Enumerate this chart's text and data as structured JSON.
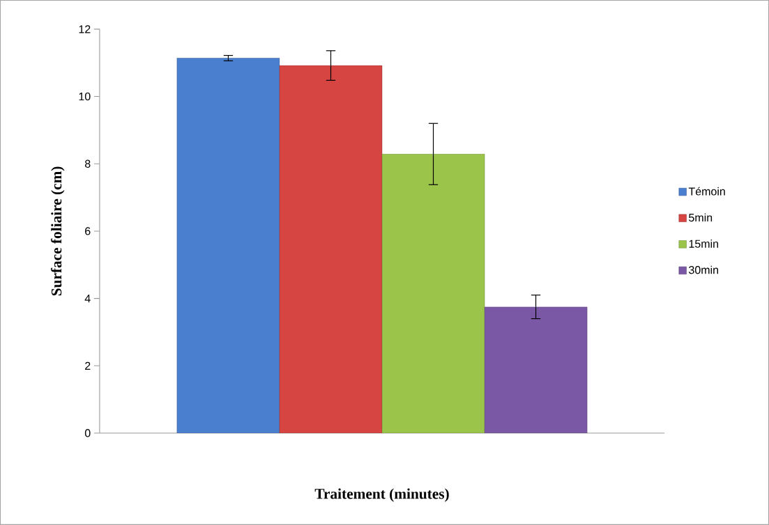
{
  "chart_data": {
    "type": "bar",
    "xlabel": "Traitement (minutes)",
    "ylabel": "Surface foliaire (cm)",
    "categories": [
      null
    ],
    "series": [
      {
        "name": "Témoin",
        "color": "#4a7fcf",
        "values": [
          11.14
        ],
        "errors": [
          0.08
        ]
      },
      {
        "name": "5min",
        "color": "#d64541",
        "values": [
          10.92
        ],
        "errors": [
          0.44
        ]
      },
      {
        "name": "15min",
        "color": "#9bc54a",
        "values": [
          8.29
        ],
        "errors": [
          0.91
        ]
      },
      {
        "name": "30min",
        "color": "#7b58a6",
        "values": [
          3.75
        ],
        "errors": [
          0.35
        ]
      }
    ],
    "ylim": [
      0,
      12
    ],
    "yticks": [
      0,
      2,
      4,
      6,
      8,
      10,
      12
    ],
    "legend": "right"
  }
}
